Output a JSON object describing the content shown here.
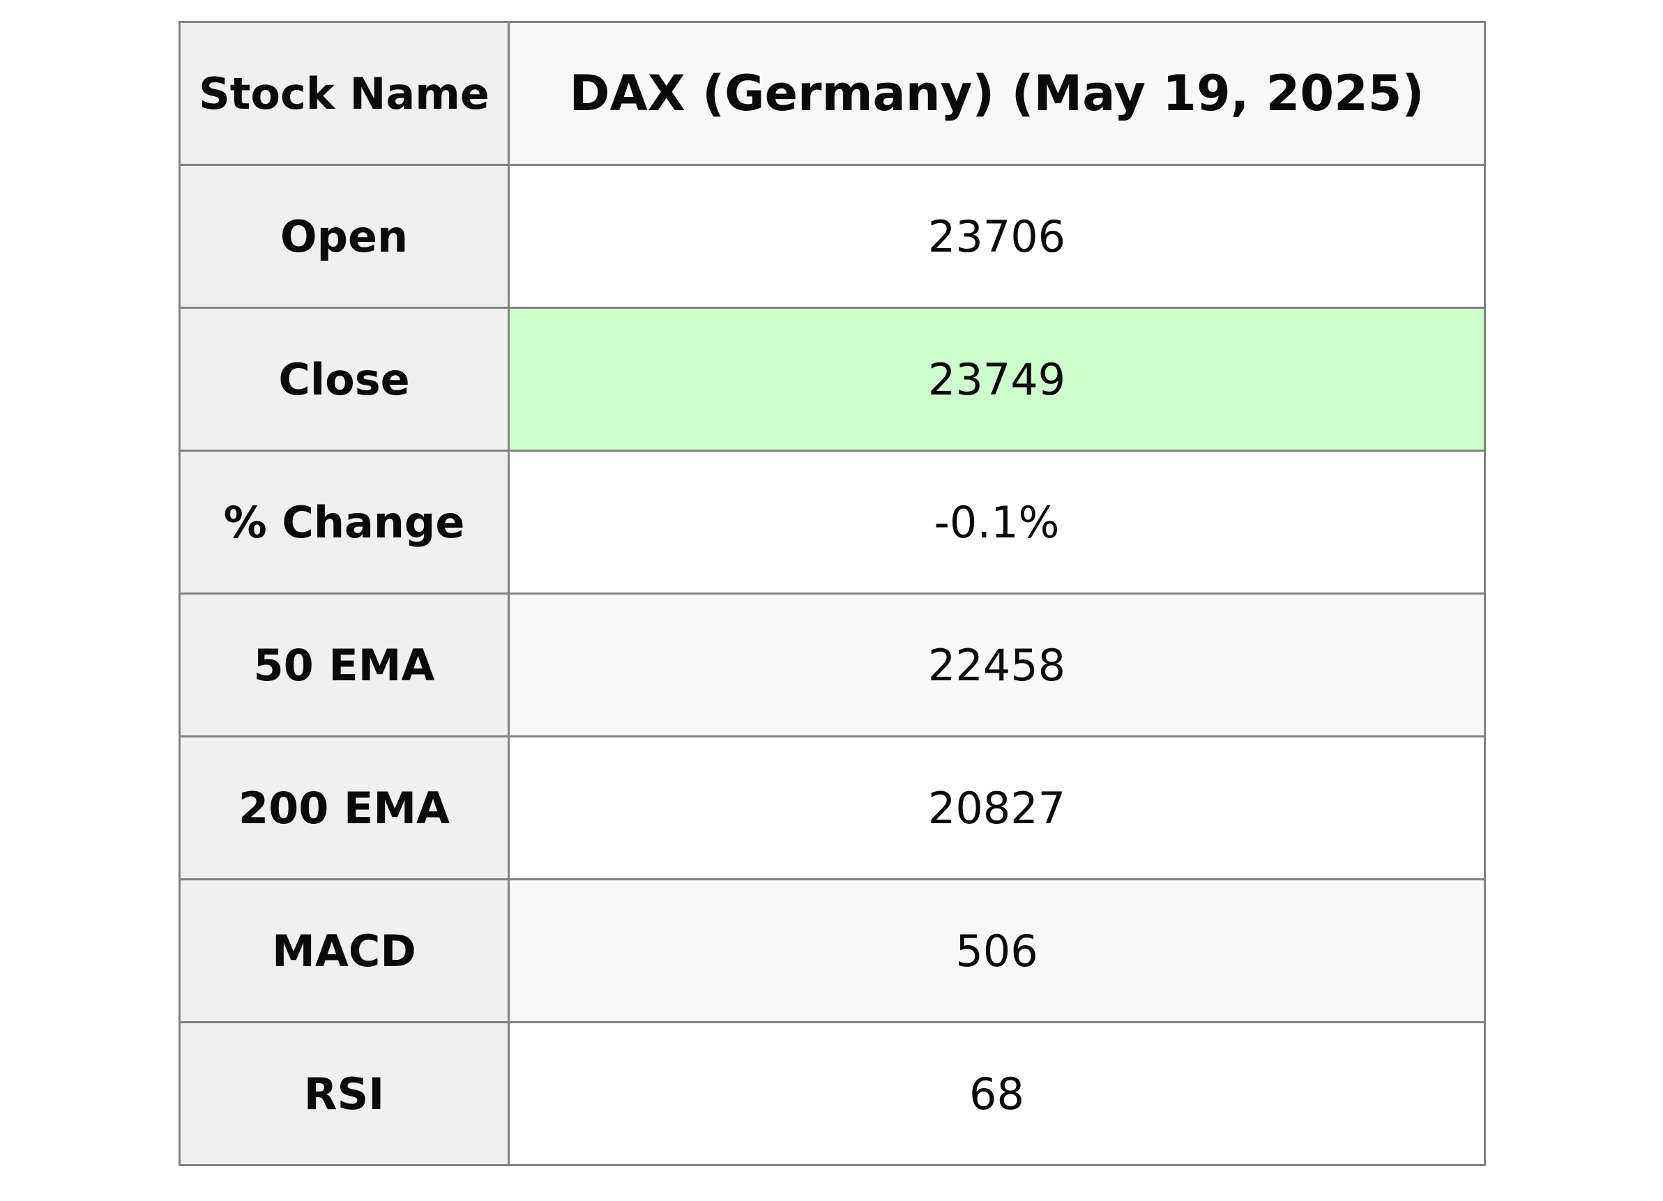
{
  "table": {
    "header": {
      "label": "Stock Name",
      "value": "DAX (Germany) (May 19, 2025)"
    },
    "rows": [
      {
        "label": "Open",
        "value": "23706",
        "highlight": false
      },
      {
        "label": "Close",
        "value": "23749",
        "highlight": true
      },
      {
        "label": "% Change",
        "value": "-0.1%",
        "highlight": false
      },
      {
        "label": "50 EMA",
        "value": "22458",
        "highlight": false
      },
      {
        "label": "200 EMA",
        "value": "20827",
        "highlight": false
      },
      {
        "label": "MACD",
        "value": "506",
        "highlight": false
      },
      {
        "label": "RSI",
        "value": "68",
        "highlight": false
      }
    ],
    "colors": {
      "label_bg": "#f0f0f0",
      "header_value_bg": "#f8f8f8",
      "row_bg": "#ffffff",
      "row_bg_striped": "#f8f8f8",
      "highlight_bg": "#ccffcc",
      "border": "#828282",
      "text": "#0a0a0a"
    }
  },
  "chart_data": {
    "type": "table",
    "title": "DAX (Germany) (May 19, 2025)",
    "columns": [
      "Stock Name",
      "DAX (Germany) (May 19, 2025)"
    ],
    "metrics": {
      "Open": 23706,
      "Close": 23749,
      "% Change": "-0.1%",
      "50 EMA": 22458,
      "200 EMA": 20827,
      "MACD": 506,
      "RSI": 68
    },
    "highlighted_metric": "Close"
  }
}
